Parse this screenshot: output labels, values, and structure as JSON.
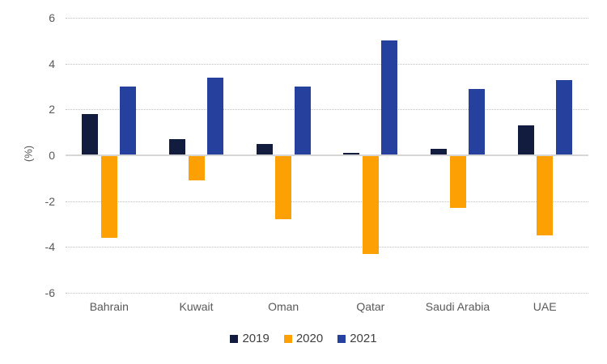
{
  "chart": {
    "y_axis_title": "(%)",
    "yticks": [
      6,
      4,
      2,
      0,
      -2,
      -4,
      -6
    ]
  },
  "chart_data": {
    "type": "bar",
    "title": "",
    "xlabel": "",
    "ylabel": "(%)",
    "ylim": [
      -6,
      6
    ],
    "grid": true,
    "legend_position": "bottom",
    "categories": [
      "Bahrain",
      "Kuwait",
      "Oman",
      "Qatar",
      "Saudi Arabia",
      "UAE"
    ],
    "series": [
      {
        "name": "2019",
        "color": "#111c3e",
        "values": [
          1.8,
          0.7,
          0.5,
          0.1,
          0.3,
          1.3
        ]
      },
      {
        "name": "2020",
        "color": "#fca003",
        "values": [
          -3.6,
          -1.1,
          -2.8,
          -4.3,
          -2.3,
          -3.5
        ]
      },
      {
        "name": "2021",
        "color": "#26409e",
        "values": [
          3.0,
          3.4,
          3.0,
          5.0,
          2.9,
          3.3
        ]
      }
    ]
  }
}
